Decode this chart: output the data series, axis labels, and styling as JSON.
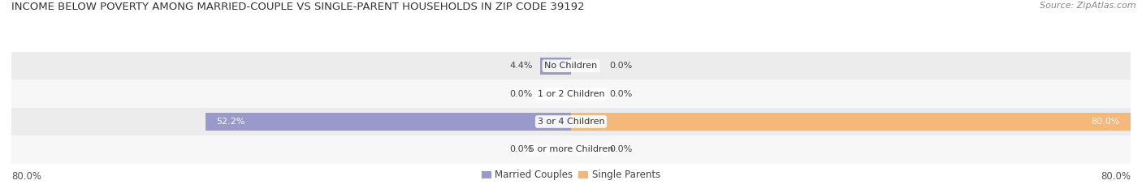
{
  "title": "INCOME BELOW POVERTY AMONG MARRIED-COUPLE VS SINGLE-PARENT HOUSEHOLDS IN ZIP CODE 39192",
  "source": "Source: ZipAtlas.com",
  "categories": [
    "No Children",
    "1 or 2 Children",
    "3 or 4 Children",
    "5 or more Children"
  ],
  "married_values": [
    4.4,
    0.0,
    52.2,
    0.0
  ],
  "single_values": [
    0.0,
    0.0,
    80.0,
    0.0
  ],
  "married_color": "#9999cc",
  "single_color": "#f5b87a",
  "xlim": [
    -80.0,
    80.0
  ],
  "bar_height": 0.62,
  "title_fontsize": 9.5,
  "source_fontsize": 8,
  "label_fontsize": 8,
  "category_fontsize": 8,
  "tick_fontsize": 8.5,
  "legend_fontsize": 8.5,
  "background_color": "#ffffff",
  "row_colors": [
    "#ececec",
    "#f7f7f7",
    "#ececec",
    "#f7f7f7"
  ]
}
